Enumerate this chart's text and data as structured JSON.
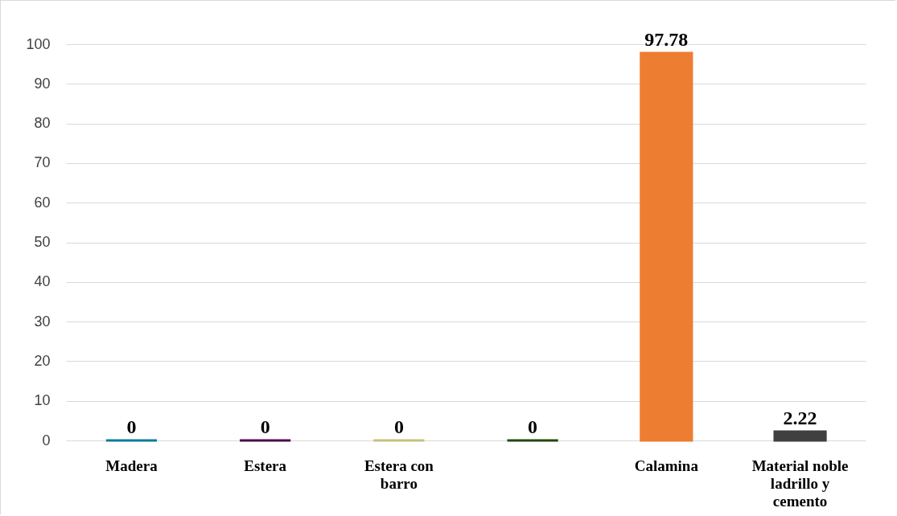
{
  "chart_data": {
    "type": "bar",
    "categories": [
      "Madera",
      "Estera",
      "Estera con barro",
      null,
      "Calamina",
      "Material noble ladrillo y cemento"
    ],
    "values": [
      0,
      0,
      0,
      0,
      97.78,
      2.22
    ],
    "colors": [
      "#0e7a9c",
      "#4b0a4b",
      "#c3c27a",
      "#1f4a0a",
      "#ed7d31",
      "#404040"
    ],
    "ylim": [
      0,
      100
    ],
    "yticks": [
      0,
      10,
      20,
      30,
      40,
      50,
      60,
      70,
      80,
      90,
      100
    ],
    "grid": "y",
    "data_labels": true
  }
}
